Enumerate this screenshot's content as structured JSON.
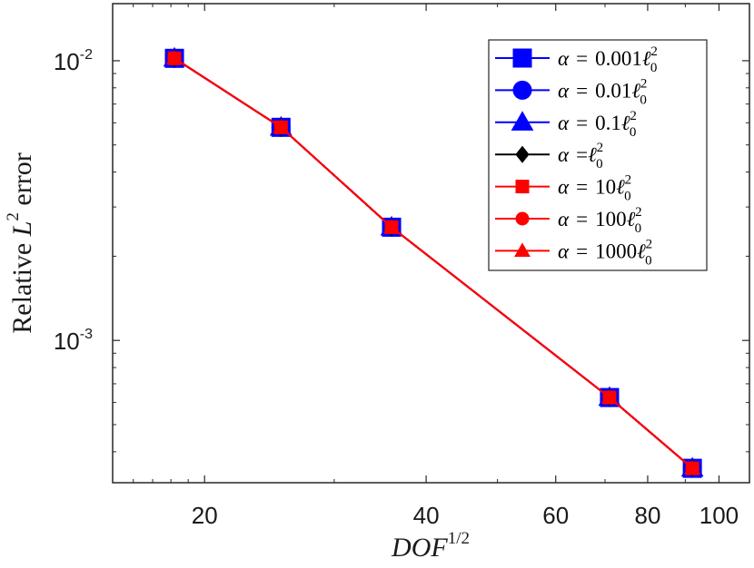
{
  "chart_data": {
    "type": "line",
    "xscale": "log",
    "yscale": "log",
    "xlim": [
      15,
      110
    ],
    "ylim": [
      0.00031,
      0.016
    ],
    "xticks": [
      {
        "value": 20,
        "label": "20"
      },
      {
        "value": 40,
        "label": "40"
      },
      {
        "value": 60,
        "label": "60"
      },
      {
        "value": 80,
        "label": "80"
      },
      {
        "value": 100,
        "label": "100"
      }
    ],
    "yticks": [
      {
        "value": 0.01,
        "base": "10",
        "exp": "-2"
      },
      {
        "value": 0.001,
        "base": "10",
        "exp": "-3"
      }
    ],
    "xlabel": {
      "main": "DOF",
      "sup": "1/2"
    },
    "ylabel": {
      "pre": "Relative ",
      "var": "L",
      "sup": "2",
      "post": " error"
    },
    "x": [
      18.2,
      25.4,
      35.9,
      71.0,
      92.0
    ],
    "series": [
      {
        "name": "α = 0.001ℓ₀²",
        "color": "#0000ff",
        "marker": "square",
        "size": "large",
        "values": [
          0.0102,
          0.00578,
          0.00254,
          0.000625,
          0.000349
        ]
      },
      {
        "name": "α = 0.01ℓ₀²",
        "color": "#0000ff",
        "marker": "circle",
        "size": "large",
        "values": [
          0.0102,
          0.00578,
          0.00254,
          0.000625,
          0.000349
        ]
      },
      {
        "name": "α = 0.1ℓ₀²",
        "color": "#0000ff",
        "marker": "triangle",
        "size": "large",
        "values": [
          0.0102,
          0.00578,
          0.00254,
          0.000625,
          0.000349
        ]
      },
      {
        "name": "α = ℓ₀²",
        "color": "#000000",
        "marker": "diamond",
        "size": "small",
        "values": [
          0.0102,
          0.00578,
          0.00254,
          0.000625,
          0.000349
        ]
      },
      {
        "name": "α = 10ℓ₀²",
        "color": "#ff0000",
        "marker": "square",
        "size": "small",
        "values": [
          0.0102,
          0.00578,
          0.00254,
          0.000625,
          0.000349
        ]
      },
      {
        "name": "α = 100ℓ₀²",
        "color": "#ff0000",
        "marker": "circle",
        "size": "small",
        "values": [
          0.0102,
          0.00578,
          0.00254,
          0.000625,
          0.000349
        ]
      },
      {
        "name": "α = 1000ℓ₀²",
        "color": "#ff0000",
        "marker": "triangle",
        "size": "small",
        "values": [
          0.0102,
          0.00578,
          0.00254,
          0.000625,
          0.000349
        ]
      }
    ],
    "legend": {
      "position": "top-right",
      "entries": [
        {
          "lhs": "α",
          "eq": "=",
          "coef": "0.001",
          "var": "ℓ",
          "sub": "0",
          "sup": "2"
        },
        {
          "lhs": "α",
          "eq": "=",
          "coef": "0.01",
          "var": "ℓ",
          "sub": "0",
          "sup": "2"
        },
        {
          "lhs": "α",
          "eq": "=",
          "coef": "0.1",
          "var": "ℓ",
          "sub": "0",
          "sup": "2"
        },
        {
          "lhs": "α",
          "eq": "=",
          "coef": "",
          "var": "ℓ",
          "sub": "0",
          "sup": "2"
        },
        {
          "lhs": "α",
          "eq": "=",
          "coef": "10",
          "var": "ℓ",
          "sub": "0",
          "sup": "2"
        },
        {
          "lhs": "α",
          "eq": "=",
          "coef": "100",
          "var": "ℓ",
          "sub": "0",
          "sup": "2"
        },
        {
          "lhs": "α",
          "eq": "=",
          "coef": "1000",
          "var": "ℓ",
          "sub": "0",
          "sup": "2"
        }
      ]
    },
    "grid": false,
    "box": true
  }
}
